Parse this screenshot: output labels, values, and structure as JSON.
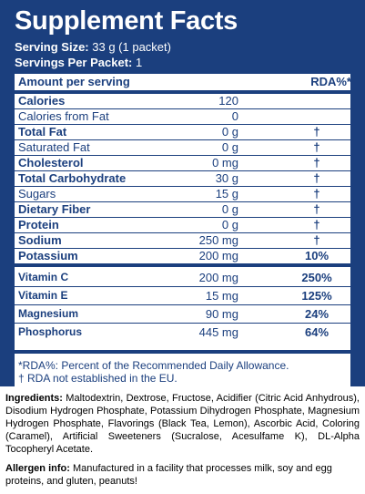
{
  "title": "Supplement Facts",
  "serving_size": {
    "label": "Serving Size:",
    "value": " 33 g (1 packet)"
  },
  "servings_per_packet": {
    "label": "Servings Per Packet:",
    "value": " 1"
  },
  "header": {
    "amount_label": "Amount per serving",
    "rda_label": "RDA%*"
  },
  "rows": [
    {
      "name": "Calories",
      "amount": "120",
      "rda": ""
    },
    {
      "name": "Calories from Fat",
      "amount": "0",
      "rda": ""
    },
    {
      "name": "Total Fat",
      "amount": "0 g",
      "rda": "†"
    },
    {
      "name": "Saturated Fat",
      "amount": "0 g",
      "rda": "†"
    },
    {
      "name": "Cholesterol",
      "amount": "0 mg",
      "rda": "†"
    },
    {
      "name": "Total Carbohydrate",
      "amount": "30 g",
      "rda": "†"
    },
    {
      "name": "Sugars",
      "amount": "15 g",
      "rda": "†"
    },
    {
      "name": "Dietary Fiber",
      "amount": "0 g",
      "rda": "†"
    },
    {
      "name": "Protein",
      "amount": "0 g",
      "rda": "†"
    },
    {
      "name": "Sodium",
      "amount": "250 mg",
      "rda": "†"
    },
    {
      "name": "Potassium",
      "amount": "200 mg",
      "rda": "10%"
    }
  ],
  "vitamins": [
    {
      "name": "Vitamin C",
      "amount": "200 mg",
      "rda": "250%"
    },
    {
      "name": "Vitamin E",
      "amount": "15 mg",
      "rda": "125%"
    },
    {
      "name": "Magnesium",
      "amount": "90 mg",
      "rda": "24%"
    },
    {
      "name": "Phosphorus",
      "amount": "445 mg",
      "rda": "64%"
    }
  ],
  "footnotes": {
    "rda_note": "*RDA%: Percent of the Recommended Daily Allowance.",
    "dagger_note": "† RDA not established in the EU."
  },
  "ingredients": {
    "label": "Ingredients:",
    "text": " Maltodextrin, Dextrose, Fructose, Acidifier (Citric Acid Anhydrous), Disodium Hydrogen Phosphate, Potassium Dihydrogen Phosphate, Magnesium Hydrogen Phosphate, Flavorings (Black Tea, Lemon), Ascorbic Acid, Coloring (Caramel), Artificial Sweeteners (Sucralose, Acesulfame K), DL-Alpha Tocopheryl Acetate."
  },
  "allergen": {
    "label": "Allergen info:",
    "text": " Manufactured in a facility that processes milk, soy and egg proteins, and gluten, peanuts!"
  }
}
